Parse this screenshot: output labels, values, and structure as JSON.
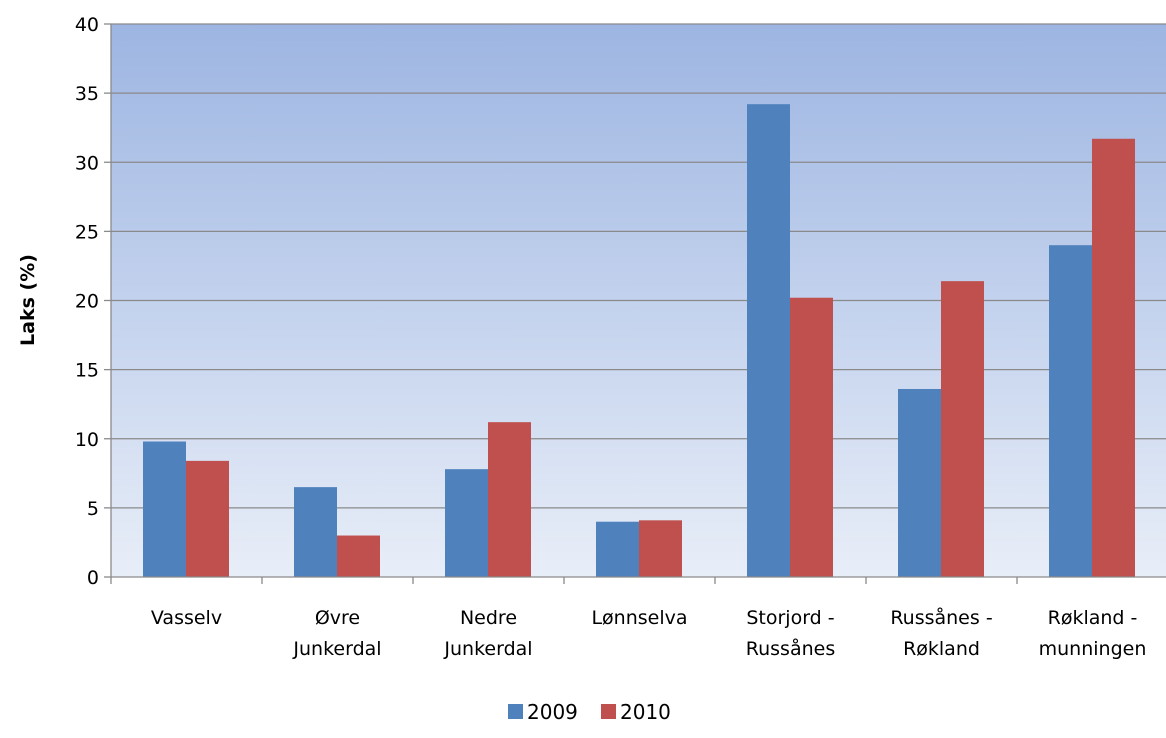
{
  "chart_data": {
    "type": "bar",
    "title": "",
    "xlabel": "",
    "ylabel": "Laks (%)",
    "ylim": [
      0,
      40
    ],
    "yticks": [
      0,
      5,
      10,
      15,
      20,
      25,
      30,
      35,
      40
    ],
    "grid": true,
    "legend_position": "bottom",
    "categories": [
      [
        "Vasselv"
      ],
      [
        "Øvre",
        "Junkerdal"
      ],
      [
        "Nedre",
        "Junkerdal"
      ],
      [
        "Lønnselva"
      ],
      [
        "Storjord -",
        "Russånes"
      ],
      [
        "Russånes -",
        "Røkland"
      ],
      [
        "Røkland -",
        "munningen"
      ]
    ],
    "series": [
      {
        "name": "2009",
        "color": "#4f81bd",
        "values": [
          9.8,
          6.5,
          7.8,
          4.0,
          34.2,
          13.6,
          24.0
        ]
      },
      {
        "name": "2010",
        "color": "#c0504d",
        "values": [
          8.4,
          3.0,
          11.2,
          4.1,
          20.2,
          21.4,
          31.7
        ]
      }
    ],
    "background_gradient": [
      "#9db5e2",
      "#e8eef8"
    ]
  }
}
